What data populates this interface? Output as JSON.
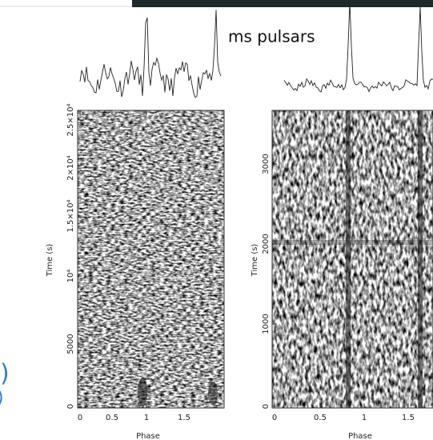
{
  "caption": "ms pulsars",
  "left_fragments": [
    ")",
    ")"
  ],
  "panels": [
    {
      "y_label": "Time (s)",
      "x_label": "Phase",
      "x_ticks": [
        "0",
        "0.5",
        "1",
        "1.5"
      ],
      "y_ticks": [
        "0",
        "5000",
        "10⁴",
        "1.5×10⁴",
        "2×10⁴",
        "2.5×10⁴"
      ]
    },
    {
      "y_label": "Time (s)",
      "x_label": "Phase",
      "x_ticks": [
        "0",
        "0.5",
        "1",
        "1.5"
      ],
      "y_ticks": [
        "0",
        "1000",
        "2000",
        "3000"
      ]
    }
  ]
}
